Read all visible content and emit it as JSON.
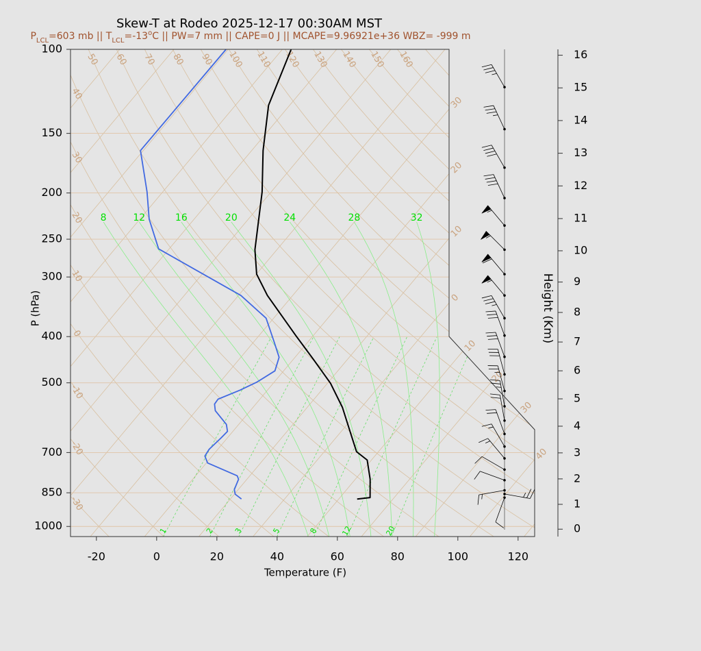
{
  "chart_data": {
    "type": "skew-t",
    "title": "Skew-T at Rodeo 2025-12-17 00:30AM MST",
    "subtitle": [
      "P",
      "LCL",
      "=603 mb || T",
      "LCL",
      "=-13",
      "o",
      "C || PW=7 mm || CAPE=0 J || MCAPE=9.96921e+36 WBZ= -999 m"
    ],
    "x_label": "Temperature (F)",
    "y_label": "P (hPa)",
    "y2_label": "Height (Km)",
    "xlim": [
      -28.6,
      125.5
    ],
    "xticks": [
      -20,
      0,
      20,
      40,
      60,
      80,
      100,
      120
    ],
    "ylim": [
      1050,
      100
    ],
    "yticks": [
      100,
      150,
      200,
      250,
      300,
      400,
      500,
      700,
      850,
      1000
    ],
    "log_y": true,
    "grid": true,
    "y2ticks": [
      0,
      1,
      2,
      3,
      4,
      5,
      6,
      7,
      8,
      9,
      10,
      11,
      12,
      13,
      14,
      15,
      16
    ],
    "series": [
      {
        "color": "#000000",
        "pressure": [
          876,
          870,
          796,
          726,
          697,
          632,
          563,
          501,
          447,
          398,
          328,
          296,
          263,
          199,
          163,
          131,
          100
        ],
        "temperature": [
          56.1,
          60.0,
          54.9,
          48.6,
          42.7,
          34.9,
          25.7,
          15.0,
          2.8,
          -9.8,
          -30.4,
          -39.9,
          -47.3,
          -61.0,
          -72.2,
          -83.0,
          -91.1
        ]
      },
      {
        "color": "#4169e1",
        "pressure": [
          876,
          856,
          837,
          796,
          783,
          736,
          712,
          689,
          653,
          632,
          611,
          572,
          554,
          541,
          518,
          498,
          472,
          442,
          411,
          366,
          328,
          262,
          227,
          199,
          163,
          100
        ],
        "temperature": [
          17.7,
          14.3,
          12.7,
          11.2,
          9.8,
          -3.6,
          -6.4,
          -6.9,
          -6.1,
          -5.8,
          -8.1,
          -15.6,
          -17.7,
          -17.9,
          -13.1,
          -9.7,
          -6.9,
          -9.3,
          -15.1,
          -24.5,
          -39.2,
          -79.5,
          -90.9,
          -99.2,
          -112.9,
          -112.7
        ]
      }
    ],
    "winds": {
      "pressure": [
        120,
        147,
        177,
        205,
        234,
        263,
        296,
        328,
        366,
        398,
        441,
        480,
        520,
        560,
        600,
        640,
        680,
        720,
        760,
        800,
        840,
        855,
        870
      ],
      "speed": [
        35,
        35,
        40,
        40,
        55,
        55,
        60,
        55,
        35,
        30,
        30,
        30,
        25,
        25,
        20,
        20,
        15,
        15,
        10,
        10,
        15,
        25,
        10
      ],
      "direction": [
        330,
        335,
        330,
        335,
        320,
        315,
        320,
        320,
        330,
        340,
        340,
        345,
        345,
        350,
        350,
        340,
        330,
        320,
        300,
        290,
        260,
        100,
        200
      ]
    },
    "moist_adiabat_labels": [
      8,
      12,
      16,
      20,
      24,
      28,
      32
    ],
    "mixing_ratio_labels": [
      1,
      2,
      3,
      5,
      8,
      12,
      20
    ],
    "dry_adiabat_top_labels": [
      "50",
      "60",
      "70",
      "80",
      "90",
      "100",
      "110",
      "120",
      "130",
      "140",
      "150",
      "160"
    ],
    "dry_adiabat_left_labels": [
      "40",
      "30",
      "20",
      "10",
      "0",
      "-10",
      "-20",
      "-30"
    ],
    "isotherm_labels": [
      "30",
      "20",
      "10",
      "0",
      "10",
      "20",
      "30",
      "40"
    ]
  }
}
